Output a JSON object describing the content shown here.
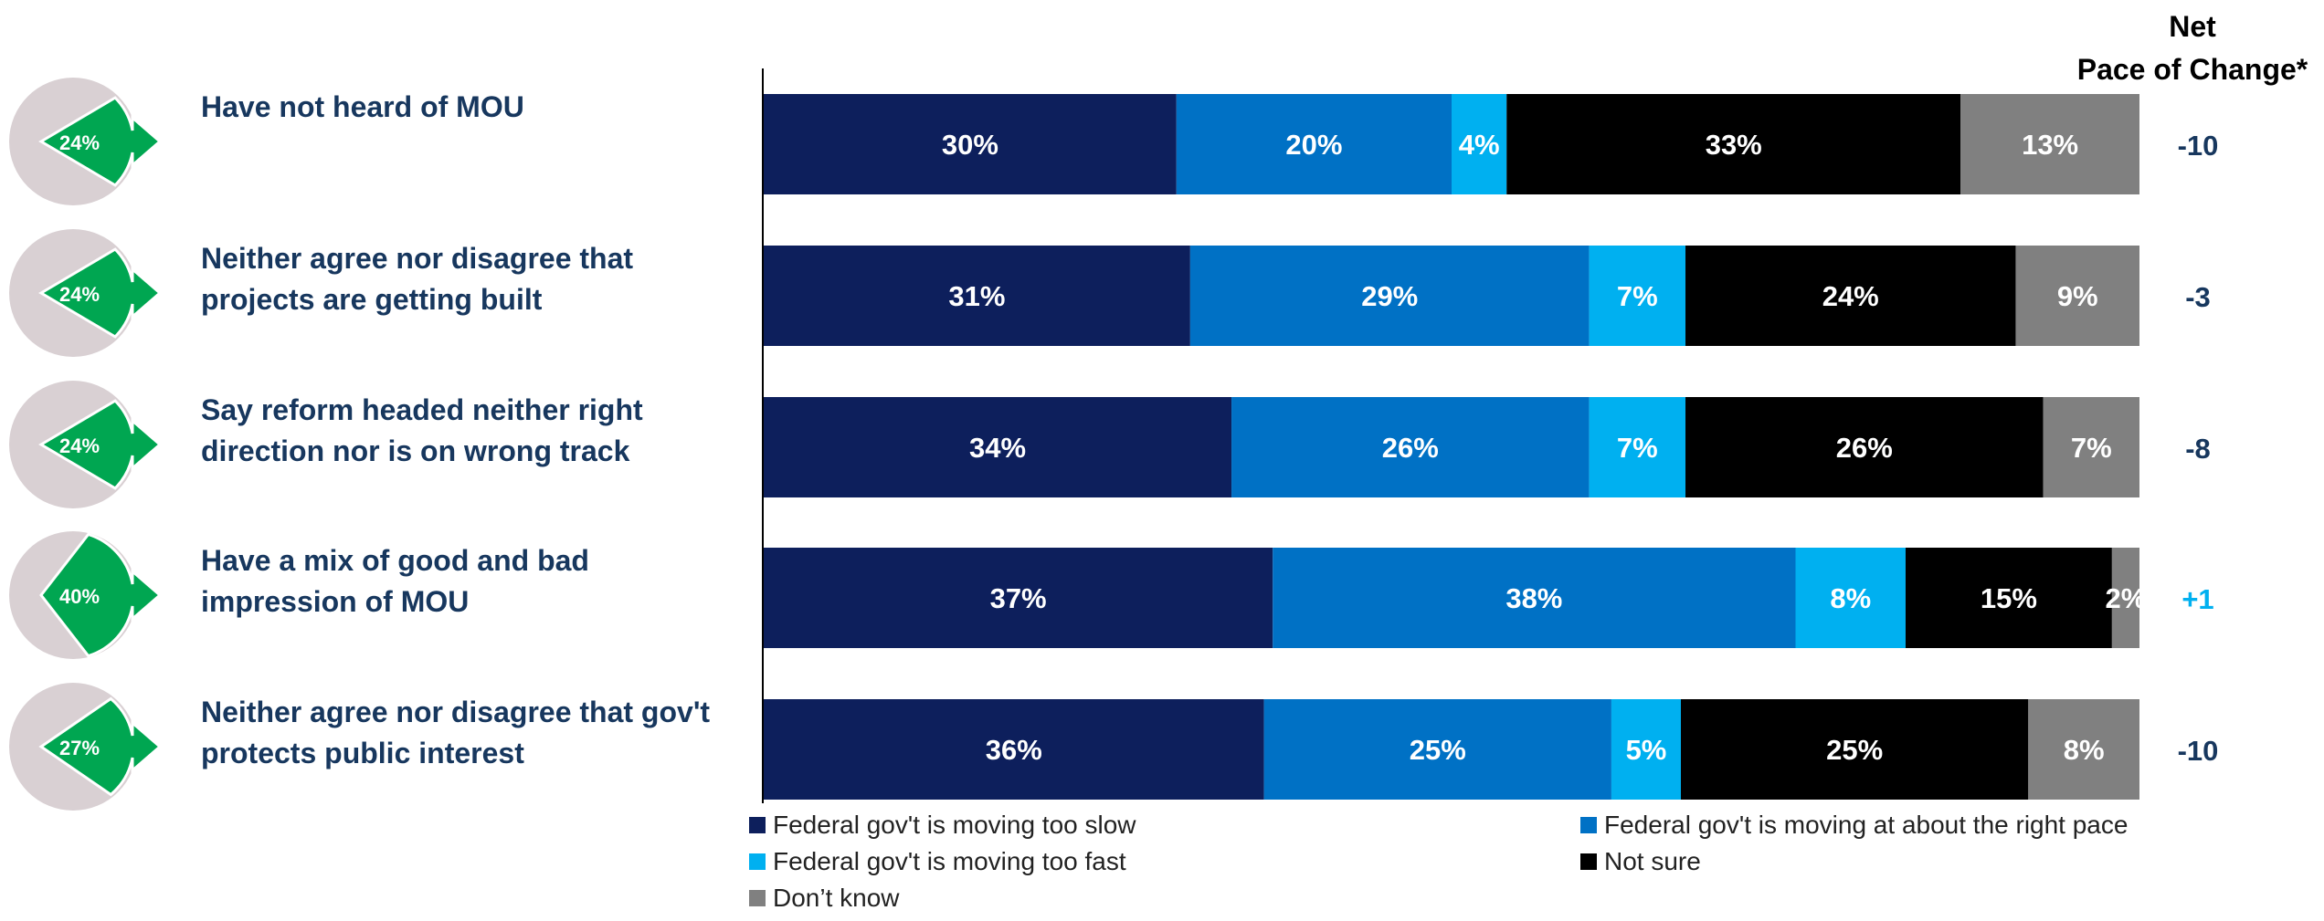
{
  "chart_data": {
    "type": "bar",
    "orientation": "horizontal",
    "stacked": true,
    "categories": [
      "Have not heard of MOU",
      "Neither agree nor disagree that projects are getting built",
      "Say reform headed neither right direction nor is on wrong track",
      "Have a mix of good and bad impression of MOU",
      "Neither agree nor disagree that gov't protects public interest"
    ],
    "row_labels": [
      [
        "Have not heard of MOU"
      ],
      [
        "Neither agree nor disagree that",
        "projects are getting built"
      ],
      [
        "Say reform headed neither right",
        "direction nor is on wrong track"
      ],
      [
        "Have a mix of good and bad",
        "impression of MOU"
      ],
      [
        "Neither agree nor disagree that gov't",
        "protects public interest"
      ]
    ],
    "pie_labels": [
      "24%",
      "24%",
      "24%",
      "40%",
      "27%"
    ],
    "pie_values": [
      24,
      24,
      24,
      40,
      27
    ],
    "series": [
      {
        "name": "Federal gov't is moving too slow",
        "color": "#0d1f5c",
        "values": [
          30,
          31,
          34,
          37,
          36
        ],
        "labels": [
          "30%",
          "31%",
          "34%",
          "37%",
          "36%"
        ]
      },
      {
        "name": "Federal gov't is moving at about the right pace",
        "color": "#0071c5",
        "values": [
          20,
          29,
          26,
          38,
          25
        ],
        "labels": [
          "20%",
          "29%",
          "26%",
          "38%",
          "25%"
        ]
      },
      {
        "name": "Federal gov't is moving too fast",
        "color": "#00b0f0",
        "values": [
          4,
          7,
          7,
          8,
          5
        ],
        "labels": [
          "4%",
          "7%",
          "7%",
          "8%",
          "5%"
        ]
      },
      {
        "name": "Not sure",
        "color": "#000000",
        "values": [
          33,
          24,
          26,
          15,
          25
        ],
        "labels": [
          "33%",
          "24%",
          "26%",
          "15%",
          "25%"
        ]
      },
      {
        "name": "Don’t know",
        "color": "#808080",
        "values": [
          13,
          9,
          7,
          2,
          8
        ],
        "labels": [
          "13%",
          "9%",
          "7%",
          "2%",
          "8%"
        ]
      }
    ],
    "net_title_line1": "Net",
    "net_title_line2": "Pace of Change*",
    "net_values": [
      "-10",
      "-3",
      "-8",
      "+1",
      "-10"
    ],
    "net_colors": [
      "#17375e",
      "#17375e",
      "#17375e",
      "#00b0f0",
      "#17375e"
    ],
    "pie_colors": {
      "base": "#d9d0d3",
      "slice": "#00a651"
    },
    "label_color": "#17375e"
  }
}
